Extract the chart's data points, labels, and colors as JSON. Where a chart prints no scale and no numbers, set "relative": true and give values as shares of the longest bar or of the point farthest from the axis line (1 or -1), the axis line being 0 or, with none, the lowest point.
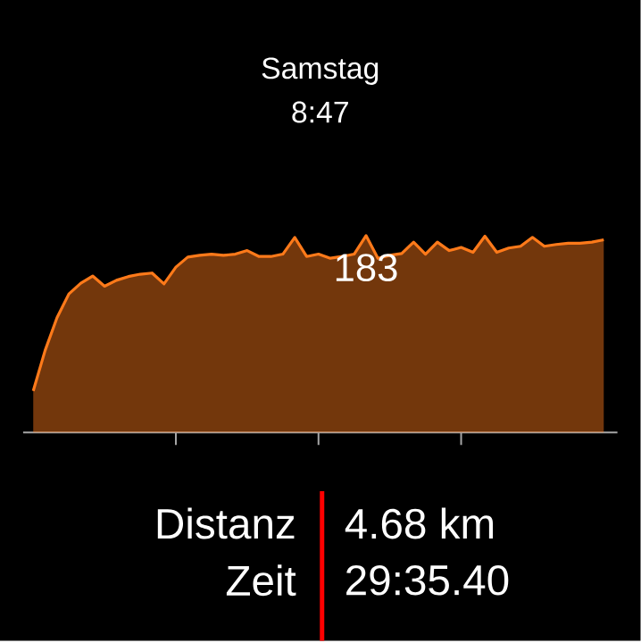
{
  "chart_data": {
    "type": "area",
    "title": "Samstag",
    "subtitle": "8:47",
    "relative": true,
    "categories": [
      null,
      null,
      null,
      null,
      null,
      null,
      null,
      null,
      null,
      null,
      null,
      null,
      null,
      null,
      null,
      null,
      null,
      null,
      null,
      null,
      null,
      null,
      null,
      null,
      null,
      null,
      null,
      null,
      null,
      null,
      null,
      null,
      null,
      null,
      null,
      null,
      null,
      null,
      null,
      null,
      null,
      null,
      null,
      null,
      null,
      null,
      null,
      null,
      null
    ],
    "series": [
      {
        "color": "#ff7a1a",
        "values": [
          0.211,
          0.417,
          0.583,
          0.704,
          0.758,
          0.795,
          0.743,
          0.773,
          0.792,
          0.804,
          0.81,
          0.755,
          0.84,
          0.891,
          0.9,
          0.906,
          0.9,
          0.906,
          0.924,
          0.894,
          0.894,
          0.906,
          0.991,
          0.894,
          0.906,
          0.885,
          0.894,
          0.906,
          1.0,
          0.885,
          0.9,
          0.909,
          0.967,
          0.906,
          0.967,
          0.924,
          0.94,
          0.915,
          0.997,
          0.915,
          0.937,
          0.946,
          0.991,
          0.946,
          0.955,
          0.961,
          0.961,
          0.967,
          0.979
        ]
      }
    ],
    "annotations": [
      "183",
      "Distanz",
      "4.68 km",
      "Zeit",
      "29:35.40"
    ]
  }
}
